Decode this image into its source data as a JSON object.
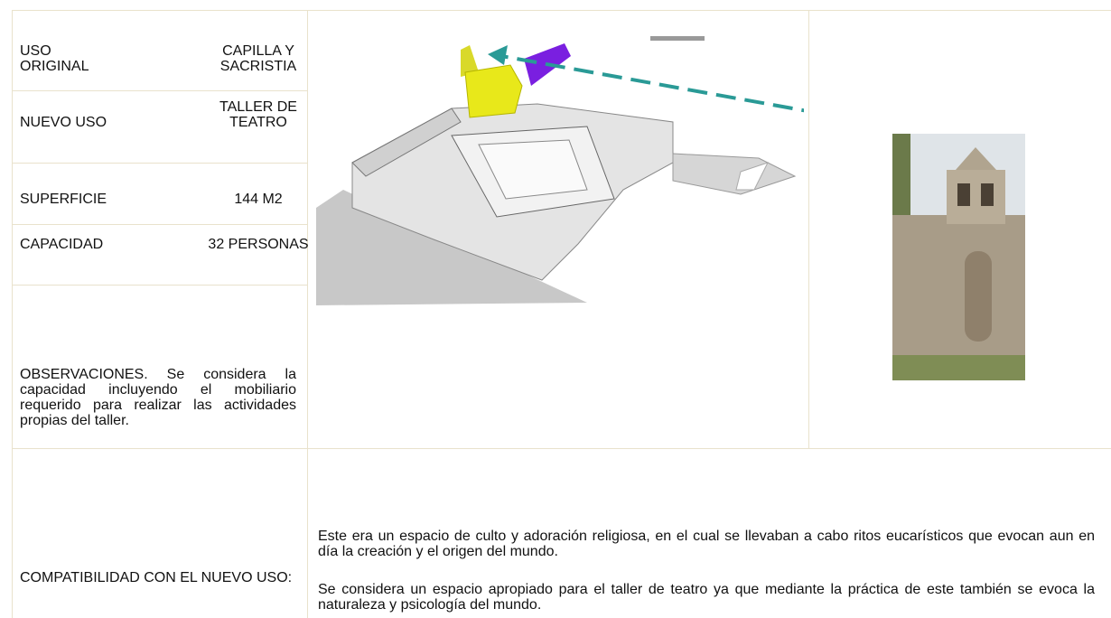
{
  "table": {
    "rows": [
      {
        "label": "USO ORIGINAL",
        "value": "CAPILLA Y SACRISTIA"
      },
      {
        "label": "NUEVO USO",
        "value": "TALLER DE TEATRO"
      },
      {
        "label": "SUPERFICIE",
        "value": "144 M2"
      },
      {
        "label": "CAPACIDAD",
        "value": "32 PERSONAS"
      }
    ],
    "observations": "OBSERVACIONES. Se considera la capacidad incluyendo el mobiliario requerido para realizar las actividades propias del taller.",
    "compatibility": {
      "label": "COMPATIBILIDAD CON EL NUEVO USO:",
      "paragraphs": [
        "Este era un espacio de culto y adoración religiosa, en el cual se llevaban a cabo ritos eucarísticos que evocan aun en día la creación y el origen del mundo.",
        "Se considera un espacio apropiado para el taller de teatro ya que mediante la práctica de este también se evoca la naturaleza y psicología del mundo."
      ]
    }
  }
}
